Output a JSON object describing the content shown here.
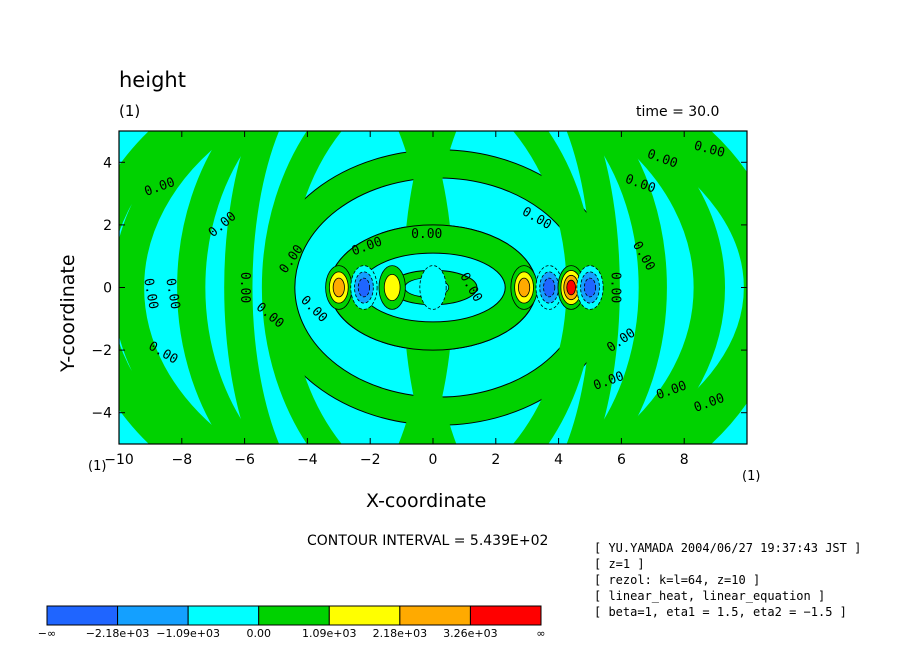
{
  "header": {
    "title": "height",
    "index_label": "(1)",
    "time_label": "time = 30.0"
  },
  "chart_data": {
    "type": "contour",
    "variable": "height",
    "xlabel": "X-coordinate",
    "ylabel": "Y-coordinate",
    "xlim": [
      -10,
      10
    ],
    "ylim": [
      -5,
      5
    ],
    "x_ticks": [
      -10,
      -8,
      -6,
      -4,
      -2,
      0,
      2,
      4,
      6,
      8
    ],
    "y_ticks": [
      -4,
      -2,
      0,
      2,
      4
    ],
    "x_unit": "(1)",
    "y_unit": "(1)",
    "contour_interval_label": "CONTOUR INTERVAL = 5.439E+02",
    "contour_interval": 543.9,
    "contour_labels": [
      "0.00"
    ],
    "colorbar": {
      "colors": [
        "#1f65ff",
        "#14a0ff",
        "#00ffff",
        "#00d200",
        "#ffff00",
        "#ffaa00",
        "#ff0000"
      ],
      "tick_labels": [
        "−∞",
        "−2.18e+03",
        "−1.09e+03",
        "0.00",
        "1.09e+03",
        "2.18e+03",
        "3.26e+03",
        "∞"
      ]
    },
    "features": [
      {
        "x": -3.0,
        "y": 0,
        "sign": "positive",
        "level": "high"
      },
      {
        "x": -2.2,
        "y": 0,
        "sign": "negative",
        "level": "low"
      },
      {
        "x": -1.3,
        "y": 0,
        "sign": "positive",
        "level": "moderate"
      },
      {
        "x": 0.0,
        "y": 0,
        "sign": "negative",
        "level": "weak"
      },
      {
        "x": 2.9,
        "y": 0,
        "sign": "positive",
        "level": "high"
      },
      {
        "x": 3.7,
        "y": 0,
        "sign": "negative",
        "level": "low"
      },
      {
        "x": 4.4,
        "y": 0,
        "sign": "positive",
        "level": "peak"
      },
      {
        "x": 5.0,
        "y": 0,
        "sign": "negative",
        "level": "low"
      }
    ]
  },
  "metadata_box": {
    "lines": [
      "[ YU.YAMADA 2004/06/27 19:37:43 JST ]",
      "[ z=1 ]",
      "[ rezol: k=l=64, z=10 ]",
      "[ linear_heat, linear_equation ]",
      "[ beta=1, eta1 = 1.5, eta2 = −1.5 ]"
    ]
  }
}
